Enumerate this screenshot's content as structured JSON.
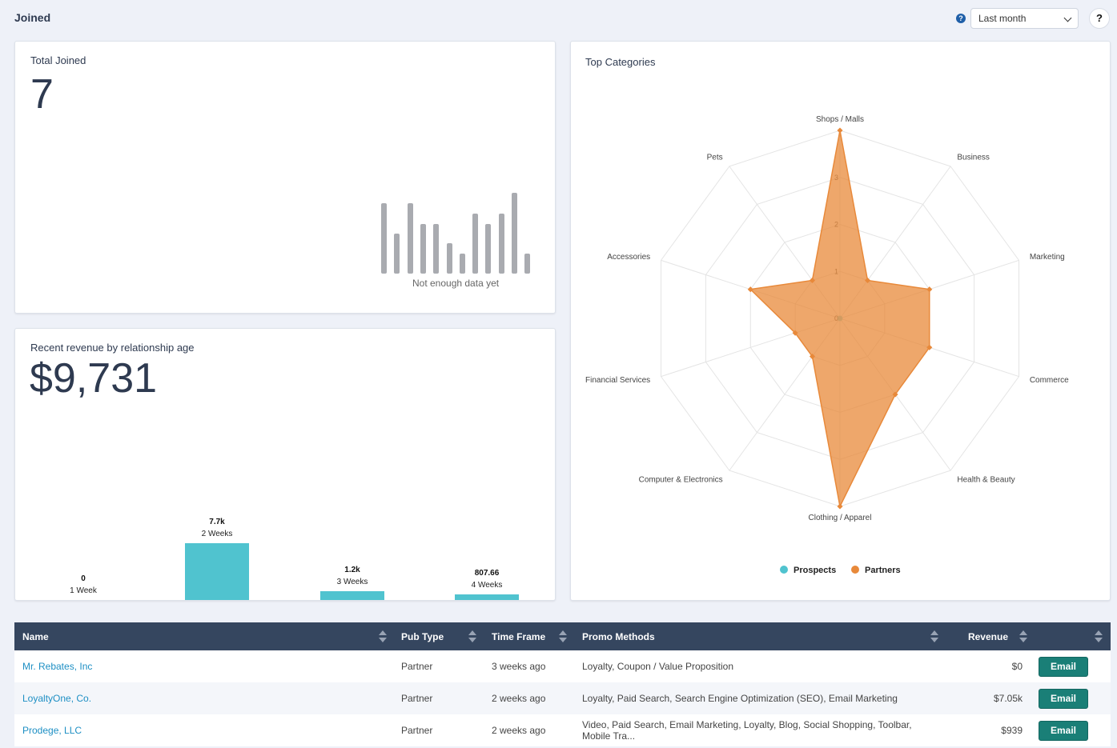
{
  "header": {
    "title": "Joined",
    "info_icon": "question-circle-icon",
    "range_select": "Last month",
    "help_label": "?"
  },
  "total_joined": {
    "title": "Total Joined",
    "value": "7",
    "empty_message": "Not enough data yet",
    "placeholder_color": "#a9abb0"
  },
  "revenue_card": {
    "title": "Recent revenue by relationship age",
    "total": "$9,731",
    "bar_color": "#50c3cf",
    "chart_data": {
      "type": "bar",
      "categories": [
        "1 Week",
        "2 Weeks",
        "3 Weeks",
        "4 Weeks"
      ],
      "values": [
        0,
        7700,
        1200,
        807.66
      ],
      "value_labels": [
        "0",
        "7.7k",
        "1.2k",
        "807.66"
      ]
    }
  },
  "categories_card": {
    "title": "Top Categories",
    "chart_data": {
      "type": "radar",
      "axes": [
        "Shops / Malls",
        "Business",
        "Marketing",
        "Commerce",
        "Health & Beauty",
        "Clothing / Apparel",
        "Computer & Electronics",
        "Financial Services",
        "Accessories",
        "Pets"
      ],
      "tick_labels": [
        "0",
        "1",
        "2",
        "3"
      ],
      "range": [
        0,
        4
      ],
      "series": [
        {
          "name": "Prospects",
          "color": "#50c3cf",
          "values": [
            0,
            0,
            0,
            0,
            0,
            0,
            0,
            0,
            0,
            0
          ]
        },
        {
          "name": "Partners",
          "color": "#e8893a",
          "values": [
            4,
            1,
            2,
            2,
            2,
            4,
            1,
            1,
            2,
            1
          ]
        }
      ],
      "legend": "bottom"
    }
  },
  "table": {
    "columns": [
      "Name",
      "Pub Type",
      "Time Frame",
      "Promo Methods",
      "Revenue",
      ""
    ],
    "rows": [
      {
        "name": "Mr. Rebates, Inc",
        "pub_type": "Partner",
        "time_frame": "3 weeks ago",
        "promo": "Loyalty, Coupon / Value Proposition",
        "revenue": "$0",
        "action": "Email"
      },
      {
        "name": "LoyaltyOne, Co.",
        "pub_type": "Partner",
        "time_frame": "2 weeks ago",
        "promo": "Loyalty, Paid Search, Search Engine Optimization (SEO), Email Marketing",
        "revenue": "$7.05k",
        "action": "Email"
      },
      {
        "name": "Prodege, LLC",
        "pub_type": "Partner",
        "time_frame": "2 weeks ago",
        "promo": "Video, Paid Search, Email Marketing, Loyalty, Blog, Social Shopping, Toolbar, Mobile Tra...",
        "revenue": "$939",
        "action": "Email"
      }
    ]
  }
}
